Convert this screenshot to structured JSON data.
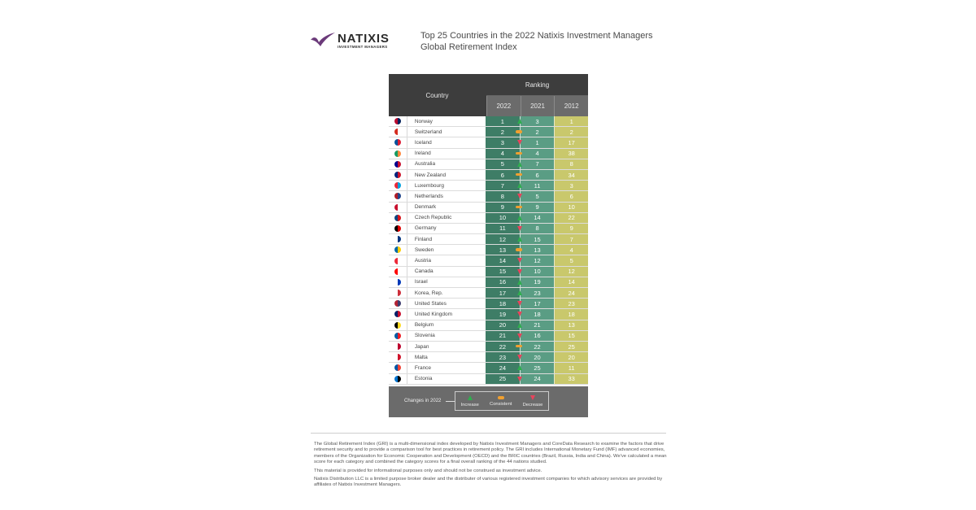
{
  "logo": {
    "brand": "NATIXIS",
    "sub": "INVESTMENT MANAGERS",
    "mark_color": "#6b3a7a"
  },
  "title": "Top 25 Countries in the 2022 Natixis Investment Managers Global Retirement Index",
  "table": {
    "country_header": "Country",
    "ranking_header": "Ranking",
    "years": [
      "2022",
      "2021",
      "2012"
    ]
  },
  "legend": {
    "label": "Changes in 2022",
    "items": [
      {
        "key": "up",
        "label": "Increase",
        "color": "#2fae4e"
      },
      {
        "key": "same",
        "label": "Consistent",
        "color": "#f0a030"
      },
      {
        "key": "down",
        "label": "Decrease",
        "color": "#e9435c"
      }
    ]
  },
  "colors": {
    "col2022": "#3e7d66",
    "col2021": "#5a9d84",
    "col2012": "#c9c86c",
    "header": "#3d3d3d"
  },
  "chart_data": {
    "type": "table",
    "title": "Top 25 Countries in the 2022 Natixis Investment Managers Global Retirement Index",
    "columns": [
      "Country",
      "2022",
      "Change",
      "2021",
      "2012"
    ],
    "rows": [
      {
        "country": "Norway",
        "r2022": 1,
        "change": "up",
        "r2021": 3,
        "r2012": 1,
        "flag": [
          "#ba0c2f",
          "#00205b"
        ]
      },
      {
        "country": "Switzerland",
        "r2022": 2,
        "change": "same",
        "r2021": 2,
        "r2012": 2,
        "flag": [
          "#d52b1e",
          "#ffffff"
        ]
      },
      {
        "country": "Iceland",
        "r2022": 3,
        "change": "down",
        "r2021": 1,
        "r2012": 17,
        "flag": [
          "#02529c",
          "#dc1e35"
        ]
      },
      {
        "country": "Ireland",
        "r2022": 4,
        "change": "same",
        "r2021": 4,
        "r2012": 38,
        "flag": [
          "#169b62",
          "#ff883e"
        ]
      },
      {
        "country": "Australia",
        "r2022": 5,
        "change": "up",
        "r2021": 7,
        "r2012": 8,
        "flag": [
          "#00008b",
          "#c8102e"
        ]
      },
      {
        "country": "New Zealand",
        "r2022": 6,
        "change": "same",
        "r2021": 6,
        "r2012": 34,
        "flag": [
          "#00247d",
          "#cc142b"
        ]
      },
      {
        "country": "Luxembourg",
        "r2022": 7,
        "change": "up",
        "r2021": 11,
        "r2012": 3,
        "flag": [
          "#ed2939",
          "#00a1de"
        ]
      },
      {
        "country": "Netherlands",
        "r2022": 8,
        "change": "down",
        "r2021": 5,
        "r2012": 6,
        "flag": [
          "#ae1c28",
          "#21468b"
        ]
      },
      {
        "country": "Denmark",
        "r2022": 9,
        "change": "same",
        "r2021": 9,
        "r2012": 10,
        "flag": [
          "#c8102e",
          "#ffffff"
        ]
      },
      {
        "country": "Czech Republic",
        "r2022": 10,
        "change": "up",
        "r2021": 14,
        "r2012": 22,
        "flag": [
          "#11457e",
          "#d7141a"
        ]
      },
      {
        "country": "Germany",
        "r2022": 11,
        "change": "down",
        "r2021": 8,
        "r2012": 9,
        "flag": [
          "#000000",
          "#dd0000"
        ]
      },
      {
        "country": "Finland",
        "r2022": 12,
        "change": "up",
        "r2021": 15,
        "r2012": 7,
        "flag": [
          "#ffffff",
          "#003580"
        ]
      },
      {
        "country": "Sweden",
        "r2022": 13,
        "change": "same",
        "r2021": 13,
        "r2012": 4,
        "flag": [
          "#006aa7",
          "#fecc00"
        ]
      },
      {
        "country": "Austria",
        "r2022": 14,
        "change": "down",
        "r2021": 12,
        "r2012": 5,
        "flag": [
          "#ed2939",
          "#ffffff"
        ]
      },
      {
        "country": "Canada",
        "r2022": 15,
        "change": "down",
        "r2021": 10,
        "r2012": 12,
        "flag": [
          "#ff0000",
          "#ffffff"
        ]
      },
      {
        "country": "Israel",
        "r2022": 16,
        "change": "up",
        "r2021": 19,
        "r2012": 14,
        "flag": [
          "#ffffff",
          "#0038b8"
        ]
      },
      {
        "country": "Korea, Rep.",
        "r2022": 17,
        "change": "up",
        "r2021": 23,
        "r2012": 24,
        "flag": [
          "#ffffff",
          "#cd2e3a"
        ]
      },
      {
        "country": "United States",
        "r2022": 18,
        "change": "down",
        "r2021": 17,
        "r2012": 23,
        "flag": [
          "#b22234",
          "#3c3b6e"
        ]
      },
      {
        "country": "United Kingdom",
        "r2022": 19,
        "change": "down",
        "r2021": 18,
        "r2012": 18,
        "flag": [
          "#012169",
          "#c8102e"
        ]
      },
      {
        "country": "Belgium",
        "r2022": 20,
        "change": "up",
        "r2021": 21,
        "r2012": 13,
        "flag": [
          "#000000",
          "#fdda24"
        ]
      },
      {
        "country": "Slovenia",
        "r2022": 21,
        "change": "down",
        "r2021": 16,
        "r2012": 15,
        "flag": [
          "#005da4",
          "#ed1c24"
        ]
      },
      {
        "country": "Japan",
        "r2022": 22,
        "change": "same",
        "r2021": 22,
        "r2012": 25,
        "flag": [
          "#ffffff",
          "#bc002d"
        ]
      },
      {
        "country": "Malta",
        "r2022": 23,
        "change": "down",
        "r2021": 20,
        "r2012": 20,
        "flag": [
          "#ffffff",
          "#cf142b"
        ]
      },
      {
        "country": "France",
        "r2022": 24,
        "change": "up",
        "r2021": 25,
        "r2012": 11,
        "flag": [
          "#0055a4",
          "#ef4135"
        ]
      },
      {
        "country": "Estonia",
        "r2022": 25,
        "change": "down",
        "r2021": 24,
        "r2012": 33,
        "flag": [
          "#0072ce",
          "#000000"
        ]
      }
    ]
  },
  "footer": {
    "p1": "The Global Retirement Index (GRI) is a multi-dimensional index developed by Natixis Investment Managers and CoreData Research to examine the factors that drive retirement security and to provide a comparison tool for best practices in retirement policy. The GRI includes International Monetary Fund (IMF) advanced economies, members of the Organization for Economic Cooperation and Development (OECD) and the BRIC countries (Brazil, Russia, India and China). We've calculated a mean score for each category and combined the category scores for a final overall ranking of the 44 nations studied.",
    "p2": "This material is provided for informational purposes only and should not be construed as investment advice.",
    "p3": "Natixis Distribution LLC is a limited purpose broker dealer and the distributer of various registered investment companies for which advisory services are provided by affiliates of Natixis Investment Managers."
  }
}
